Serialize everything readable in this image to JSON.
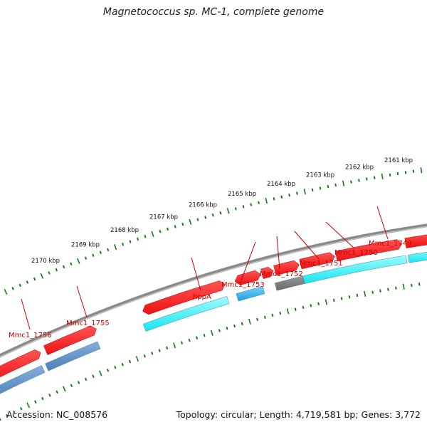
{
  "title": "Magnetococcus sp. MC-1, complete genome",
  "footer": {
    "accession": "Accession: NC_008576",
    "summary": "Topology: circular; Length: 4,719,581 bp; Genes: 3,772"
  },
  "colors": {
    "cds_forward": "#ee1111",
    "orf_light_blue": "#14e6ee",
    "orf_mid_blue": "#18a2e2",
    "orf_steel_blue": "#4a7fb8",
    "orf_gray": "#666666",
    "backbone": "#8a8a8a",
    "tick": "#157a15",
    "gene_label": "#cc0000"
  },
  "ticks": {
    "unit": "kbp",
    "labels": [
      "2161 kbp",
      "2162 kbp",
      "2163 kbp",
      "2164 kbp",
      "2165 kbp",
      "2166 kbp",
      "2167 kbp",
      "2168 kbp",
      "2169 kbp",
      "2170 kbp"
    ]
  },
  "genes": [
    {
      "label": "Mmc1_1749"
    },
    {
      "label": "Mmc1_1750"
    },
    {
      "label": "Mmc1_1751"
    },
    {
      "label": "Mmc1_1752"
    },
    {
      "label": "Mmc1_1753"
    },
    {
      "label": "hppA"
    },
    {
      "label": "Mmc1_1755"
    },
    {
      "label": "Mmc1_1756"
    }
  ]
}
